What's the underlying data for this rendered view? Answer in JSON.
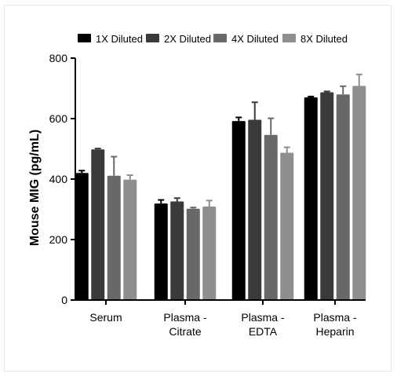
{
  "chart_data": {
    "type": "bar",
    "title": "",
    "xlabel": "",
    "ylabel": "Mouse MIG (pg/mL)",
    "ylim": [
      0,
      800
    ],
    "yticks": [
      0,
      200,
      400,
      600,
      800
    ],
    "grid": false,
    "legend_position": "top",
    "categories": [
      [
        "Serum"
      ],
      [
        "Plasma -",
        "Citrate"
      ],
      [
        "Plasma -",
        "EDTA"
      ],
      [
        "Plasma -",
        "Heparin"
      ]
    ],
    "series": [
      {
        "name": "1X Diluted",
        "color": "#000000",
        "values": [
          420,
          319,
          592,
          670
        ],
        "errors": [
          8,
          12,
          12,
          3
        ]
      },
      {
        "name": "2X Diluted",
        "color": "#3a3a3a",
        "values": [
          498,
          326,
          596,
          687
        ],
        "errors": [
          3,
          11,
          58,
          3
        ]
      },
      {
        "name": "4X Diluted",
        "color": "#686868",
        "values": [
          411,
          302,
          546,
          680
        ],
        "errors": [
          63,
          4,
          55,
          27
        ]
      },
      {
        "name": "8X Diluted",
        "color": "#8e8e8e",
        "values": [
          398,
          309,
          487,
          708
        ],
        "errors": [
          15,
          20,
          18,
          38
        ]
      }
    ]
  }
}
